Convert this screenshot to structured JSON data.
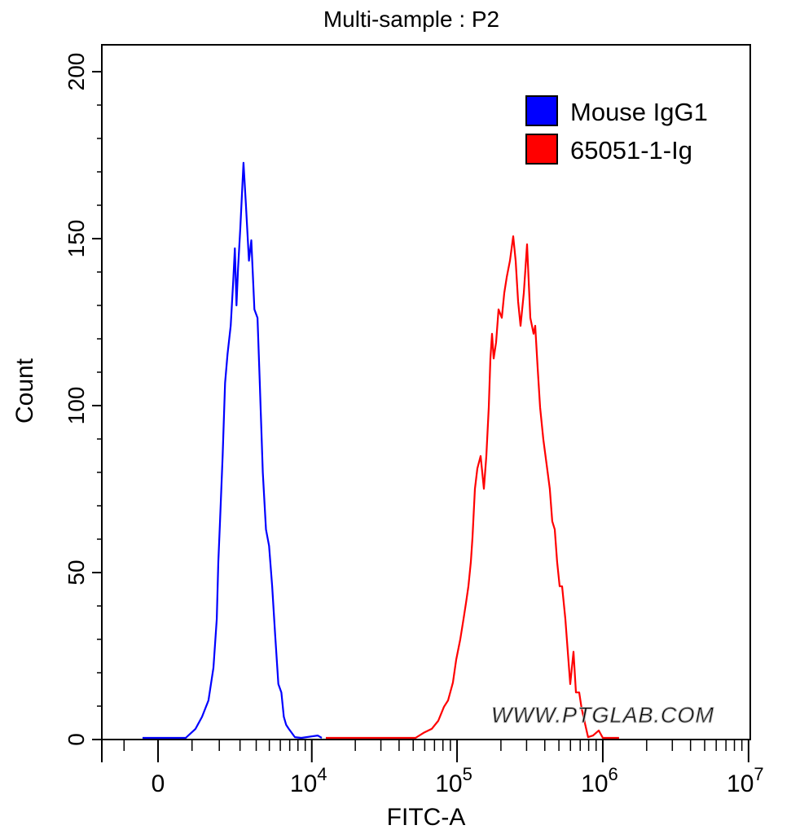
{
  "chart_data": {
    "type": "line",
    "title": "Multi-sample : P2",
    "xlabel": "FITC-A",
    "ylabel": "Count",
    "x_scale": "biexponential",
    "xlim": [
      -1800,
      10000000
    ],
    "ylim": [
      0,
      200
    ],
    "yticks": [
      0,
      50,
      100,
      150,
      200
    ],
    "xticks": [
      {
        "value": 0,
        "base": "0",
        "exp": ""
      },
      {
        "value": 10000,
        "base": "10",
        "exp": "4"
      },
      {
        "value": 100000,
        "base": "10",
        "exp": "5"
      },
      {
        "value": 1000000,
        "base": "10",
        "exp": "6"
      },
      {
        "value": 10000000,
        "base": "10",
        "exp": "7"
      }
    ],
    "grid": false,
    "legend_position": "top-right",
    "watermark": "WWW.PTGLAB.COM",
    "series": [
      {
        "name": "Mouse IgG1",
        "color": "#0000ff",
        "points": [
          [
            -439,
            0.5
          ],
          [
            803,
            0.5
          ],
          [
            1113,
            3.2
          ],
          [
            1336,
            6.8
          ],
          [
            1570,
            11.7
          ],
          [
            1762,
            21.5
          ],
          [
            1895,
            36.1
          ],
          [
            1959,
            53.2
          ],
          [
            2030,
            65.4
          ],
          [
            2144,
            84.9
          ],
          [
            2252,
            106.8
          ],
          [
            2367,
            115.4
          ],
          [
            2518,
            123.9
          ],
          [
            2643,
            137.3
          ],
          [
            2726,
            147.1
          ],
          [
            2808,
            130
          ],
          [
            2890,
            141
          ],
          [
            3017,
            153.2
          ],
          [
            3195,
            172.7
          ],
          [
            3335,
            160.5
          ],
          [
            3525,
            143.4
          ],
          [
            3675,
            149.5
          ],
          [
            3877,
            128.8
          ],
          [
            4088,
            126.3
          ],
          [
            4254,
            106.8
          ],
          [
            4479,
            80
          ],
          [
            4722,
            62.9
          ],
          [
            4975,
            58
          ],
          [
            5239,
            45.9
          ],
          [
            5514,
            31.2
          ],
          [
            5808,
            16.6
          ],
          [
            6109,
            14.1
          ],
          [
            6358,
            6.8
          ],
          [
            6607,
            4.4
          ],
          [
            6891,
            3.2
          ],
          [
            7619,
            0.7
          ],
          [
            8454,
            0.5
          ],
          [
            10997,
            1.2
          ],
          [
            11739,
            0.5
          ]
        ]
      },
      {
        "name": "65051-1-Ig",
        "color": "#ff0000",
        "points": [
          [
            12520,
            0.5
          ],
          [
            51860,
            0.5
          ],
          [
            58960,
            2
          ],
          [
            67040,
            3.2
          ],
          [
            74330,
            5.6
          ],
          [
            81340,
            9.8
          ],
          [
            86760,
            11.7
          ],
          [
            93690,
            17.1
          ],
          [
            98660,
            23.9
          ],
          [
            105200,
            30
          ],
          [
            110700,
            36.1
          ],
          [
            115200,
            41
          ],
          [
            119600,
            45.9
          ],
          [
            124300,
            53.2
          ],
          [
            127600,
            60.5
          ],
          [
            132600,
            75.1
          ],
          [
            137800,
            81.2
          ],
          [
            145200,
            84.9
          ],
          [
            152800,
            75.1
          ],
          [
            158900,
            84.9
          ],
          [
            165100,
            99.5
          ],
          [
            169400,
            114.1
          ],
          [
            173900,
            121.5
          ],
          [
            178400,
            114.1
          ],
          [
            185300,
            119
          ],
          [
            192700,
            128.8
          ],
          [
            202800,
            126.3
          ],
          [
            210900,
            133.7
          ],
          [
            219300,
            138.5
          ],
          [
            230700,
            143.4
          ],
          [
            242800,
            150.7
          ],
          [
            252500,
            143.4
          ],
          [
            262500,
            131.2
          ],
          [
            272700,
            123.9
          ],
          [
            287200,
            133.7
          ],
          [
            302200,
            148.3
          ],
          [
            318200,
            126.3
          ],
          [
            334900,
            121.5
          ],
          [
            343700,
            123.9
          ],
          [
            357000,
            111.7
          ],
          [
            371200,
            99.5
          ],
          [
            390900,
            89.8
          ],
          [
            411400,
            82.4
          ],
          [
            433000,
            75.1
          ],
          [
            450100,
            65.4
          ],
          [
            468100,
            62.9
          ],
          [
            486200,
            53.2
          ],
          [
            505600,
            45.9
          ],
          [
            525700,
            45.9
          ],
          [
            553300,
            36.1
          ],
          [
            575300,
            26.3
          ],
          [
            597600,
            16.6
          ],
          [
            629600,
            26.3
          ],
          [
            653900,
            14.1
          ],
          [
            688700,
            14.1
          ],
          [
            716100,
            9.3
          ],
          [
            753600,
            4.9
          ],
          [
            793000,
            0.7
          ],
          [
            856900,
            1.2
          ],
          [
            937700,
            2.7
          ],
          [
            1000000,
            0.5
          ],
          [
            1293000,
            0.5
          ]
        ]
      }
    ]
  }
}
